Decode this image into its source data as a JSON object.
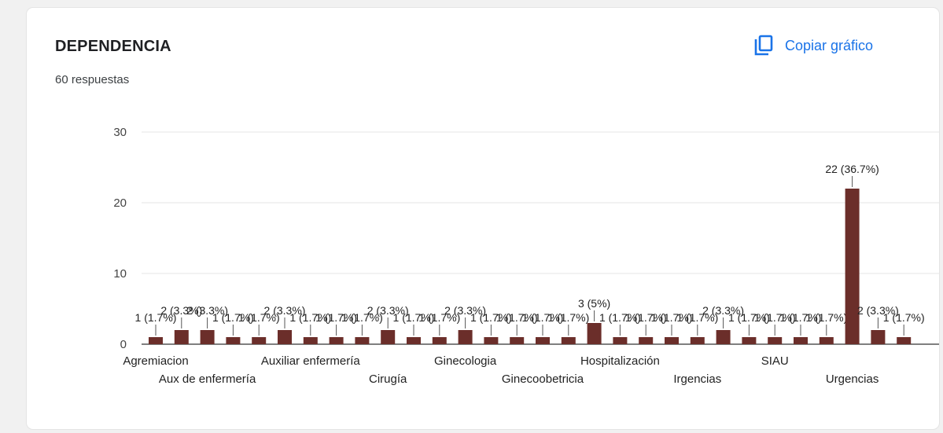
{
  "card": {
    "title": "DEPENDENCIA",
    "response_count": "60 respuestas",
    "copy_label": "Copiar gráfico"
  },
  "colors": {
    "bar": "#6b2e2a",
    "link": "#1a73e8",
    "grid": "#e6e6e6"
  },
  "icons": {
    "copy": "copy-icon"
  },
  "chart_data": {
    "type": "bar",
    "title": "DEPENDENCIA",
    "ylim": [
      0,
      30
    ],
    "yticks": [
      0,
      10,
      20,
      30
    ],
    "grid": true,
    "values": [
      1,
      2,
      2,
      1,
      1,
      2,
      1,
      1,
      1,
      2,
      1,
      1,
      2,
      1,
      1,
      1,
      1,
      3,
      1,
      1,
      1,
      1,
      2,
      1,
      1,
      1,
      1,
      22,
      2,
      1
    ],
    "value_labels": [
      "1 (1.7%)",
      "2 (3.3%)",
      "2 (3.3%)",
      "1 (1.7%)",
      "1 (1.7%)",
      "2 (3.3%)",
      "1 (1.7%)",
      "1 (1.7%)",
      "1 (1.7%)",
      "2 (3.3%)",
      "1 (1.7%)",
      "1 (1.7%)",
      "2 (3.3%)",
      "1 (1.7%)",
      "1 (1.7%)",
      "1 (1.7%)",
      "1 (1.7%)",
      "3 (5%)",
      "1 (1.7%)",
      "1 (1.7%)",
      "1 (1.7%)",
      "1 (1.7%)",
      "2 (3.3%)",
      "1 (1.7%)",
      "1 (1.7%)",
      "1 (1.7%)",
      "1 (1.7%)",
      "22 (36.7%)",
      "2 (3.3%)",
      "1 (1.7%)"
    ],
    "category_labels": [
      {
        "index": 0,
        "text": "Agremiacion",
        "row": 1
      },
      {
        "index": 2,
        "text": "Aux de enfermería",
        "row": 2
      },
      {
        "index": 6,
        "text": "Auxiliar enfermería",
        "row": 1
      },
      {
        "index": 9,
        "text": "Cirugía",
        "row": 2
      },
      {
        "index": 12,
        "text": "Ginecologia",
        "row": 1
      },
      {
        "index": 15,
        "text": "Ginecoobetricia",
        "row": 2
      },
      {
        "index": 18,
        "text": "Hospitalización",
        "row": 1
      },
      {
        "index": 21,
        "text": "Irgencias",
        "row": 2
      },
      {
        "index": 24,
        "text": "SIAU",
        "row": 1
      },
      {
        "index": 27,
        "text": "Urgencias",
        "row": 2
      }
    ]
  }
}
